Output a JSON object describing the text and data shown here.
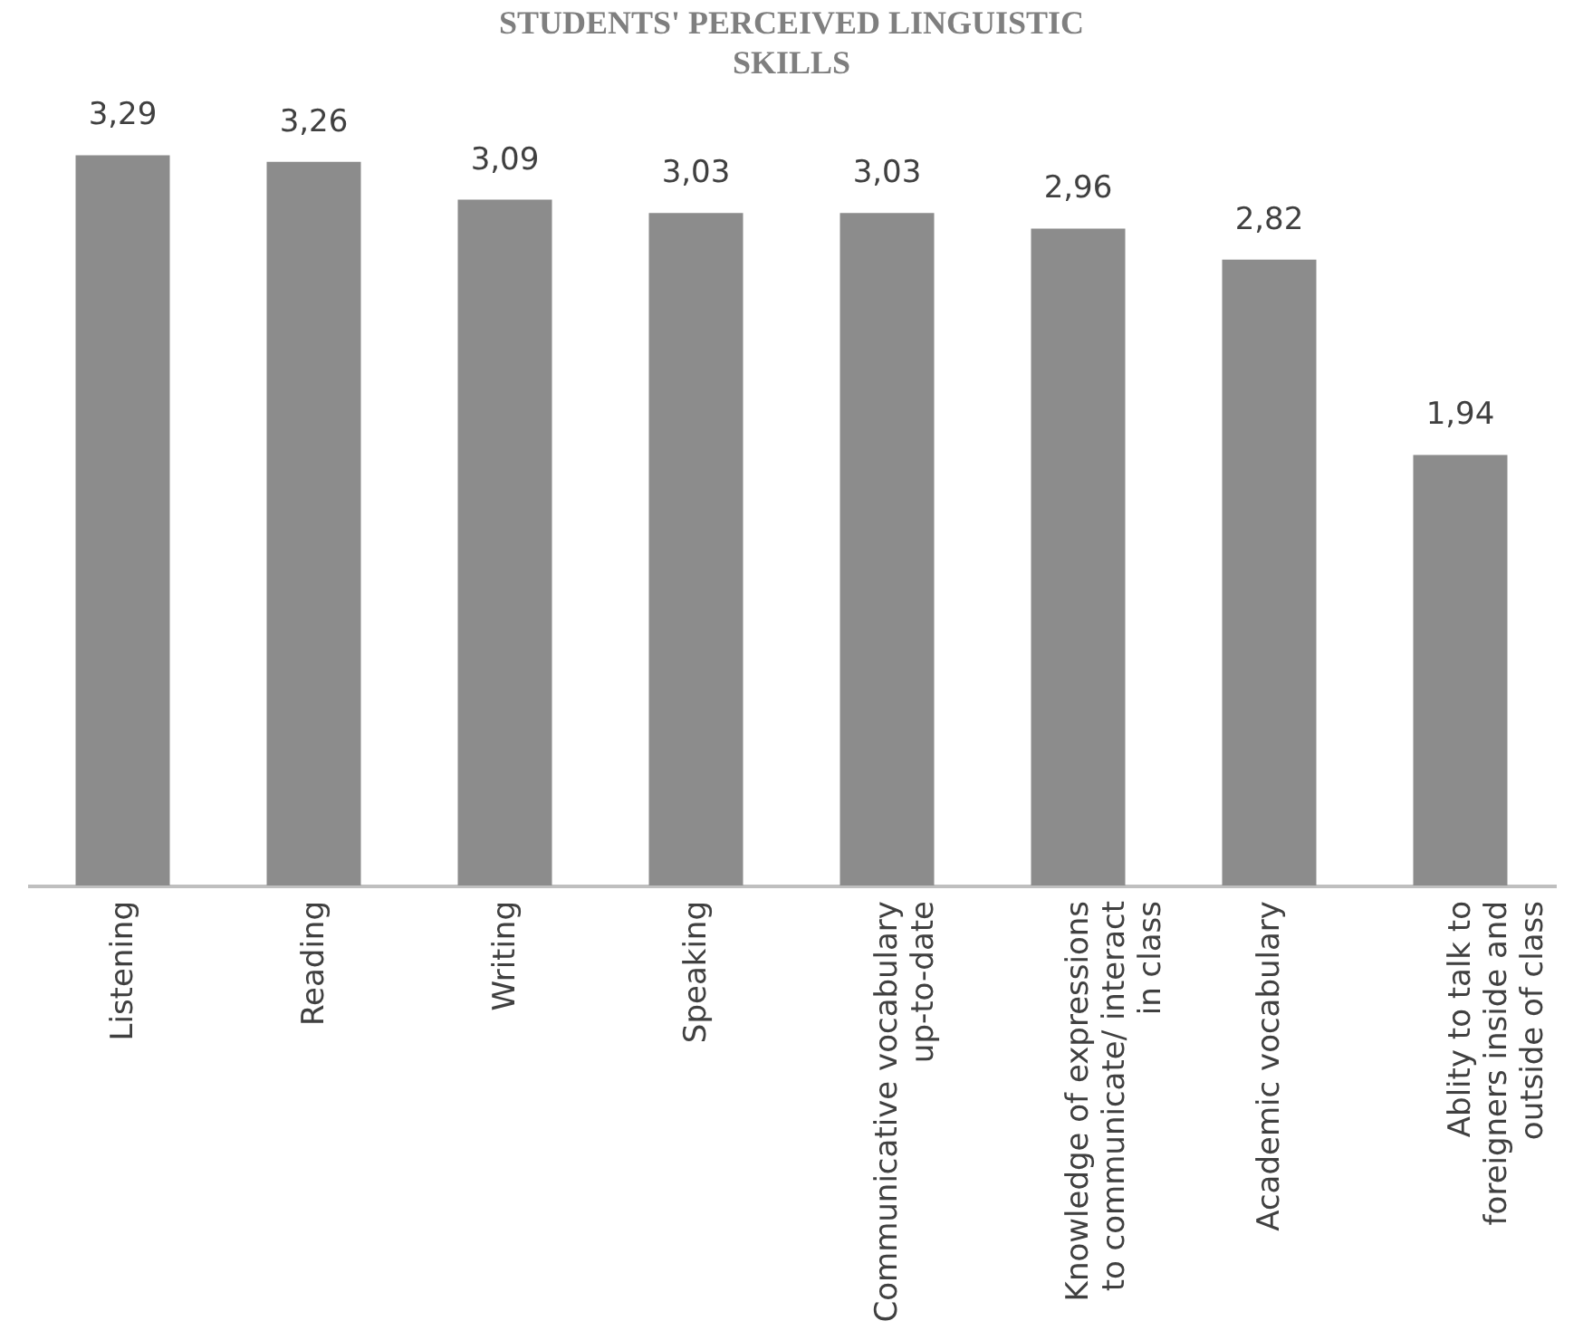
{
  "chart_data": {
    "type": "bar",
    "title": "STUDENTS' PERCEIVED LINGUISTIC SKILLS",
    "categories": [
      "Listening",
      "Reading",
      "Writing",
      "Speaking",
      "Communicative vocabulary up-to-date",
      "Knowledge of expressions to communicate/ interact in class",
      "Academic vocabulary",
      "Ablity to talk to foreigners inside and outside of class"
    ],
    "values": [
      3.29,
      3.26,
      3.09,
      3.03,
      3.03,
      2.96,
      2.82,
      1.94
    ],
    "value_labels": [
      "3,29",
      "3,26",
      "3,09",
      "3,03",
      "3,03",
      "2,96",
      "2,82",
      "1,94"
    ],
    "color": "#8c8c8c"
  }
}
